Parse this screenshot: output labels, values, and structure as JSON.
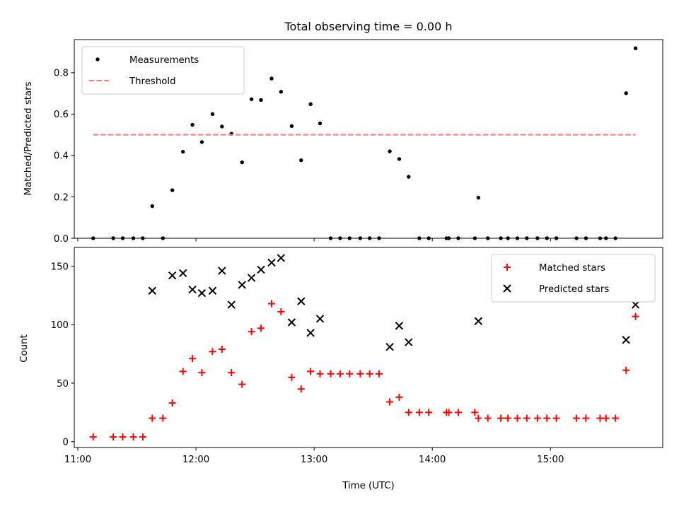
{
  "chart_data": [
    {
      "type": "scatter",
      "title": "Total observing time = 0.00 h",
      "xlabel": "",
      "ylabel": "Matched/Predicted stars",
      "xlim": [
        10.97,
        15.95
      ],
      "ylim": [
        0,
        0.96
      ],
      "x_axis": "time",
      "grid": false,
      "legend": "top-left",
      "yticks": [
        {
          "value": 0.0,
          "label": "0.0"
        },
        {
          "value": 0.2,
          "label": "0.2"
        },
        {
          "value": 0.4,
          "label": "0.4"
        },
        {
          "value": 0.6,
          "label": "0.6"
        },
        {
          "value": 0.8,
          "label": "0.8"
        }
      ],
      "xticks": [
        11,
        12,
        13,
        14,
        15
      ],
      "series": [
        {
          "name": "Measurements",
          "kind": "scatter",
          "marker": "dot",
          "color": "#000000",
          "points": [
            [
              11.13,
              0.0
            ],
            [
              11.3,
              0.0
            ],
            [
              11.38,
              0.0
            ],
            [
              11.47,
              0.0
            ],
            [
              11.55,
              0.0
            ],
            [
              11.63,
              0.155
            ],
            [
              11.72,
              0.0
            ],
            [
              11.8,
              0.232
            ],
            [
              11.89,
              0.418
            ],
            [
              11.97,
              0.548
            ],
            [
              12.05,
              0.465
            ],
            [
              12.14,
              0.6
            ],
            [
              12.22,
              0.54
            ],
            [
              12.3,
              0.505
            ],
            [
              12.39,
              0.367
            ],
            [
              12.47,
              0.672
            ],
            [
              12.55,
              0.668
            ],
            [
              12.64,
              0.772
            ],
            [
              12.72,
              0.708
            ],
            [
              12.81,
              0.542
            ],
            [
              12.89,
              0.377
            ],
            [
              12.97,
              0.648
            ],
            [
              13.05,
              0.555
            ],
            [
              13.14,
              0.0
            ],
            [
              13.22,
              0.0
            ],
            [
              13.3,
              0.0
            ],
            [
              13.39,
              0.0
            ],
            [
              13.47,
              0.0
            ],
            [
              13.55,
              0.0
            ],
            [
              13.64,
              0.42
            ],
            [
              13.72,
              0.383
            ],
            [
              13.8,
              0.297
            ],
            [
              13.89,
              0.0
            ],
            [
              13.97,
              0.0
            ],
            [
              14.12,
              0.0
            ],
            [
              14.14,
              0.0
            ],
            [
              14.22,
              0.0
            ],
            [
              14.36,
              0.0
            ],
            [
              14.39,
              0.196
            ],
            [
              14.47,
              0.0
            ],
            [
              14.58,
              0.0
            ],
            [
              14.64,
              0.0
            ],
            [
              14.72,
              0.0
            ],
            [
              14.8,
              0.0
            ],
            [
              14.89,
              0.0
            ],
            [
              14.97,
              0.0
            ],
            [
              15.05,
              0.0
            ],
            [
              15.22,
              0.0
            ],
            [
              15.3,
              0.0
            ],
            [
              15.42,
              0.0
            ],
            [
              15.47,
              0.0
            ],
            [
              15.55,
              0.0
            ],
            [
              15.64,
              0.701
            ],
            [
              15.72,
              0.918
            ]
          ]
        },
        {
          "name": "Threshold",
          "kind": "line",
          "style": "dashed",
          "color": "#ff7777",
          "points": [
            [
              11.13,
              0.5
            ],
            [
              15.72,
              0.5
            ]
          ]
        }
      ]
    },
    {
      "type": "scatter",
      "title": "",
      "xlabel": "Time (UTC)",
      "ylabel": "Count",
      "xlim": [
        10.97,
        15.95
      ],
      "ylim": [
        -5,
        166
      ],
      "x_axis": "time",
      "grid": false,
      "legend": "top-right",
      "yticks": [
        {
          "value": 0,
          "label": "0"
        },
        {
          "value": 50,
          "label": "50"
        },
        {
          "value": 100,
          "label": "100"
        },
        {
          "value": 150,
          "label": "150"
        }
      ],
      "xticks": [
        {
          "value": 11,
          "label": "11:00"
        },
        {
          "value": 12,
          "label": "12:00"
        },
        {
          "value": 13,
          "label": "13:00"
        },
        {
          "value": 14,
          "label": "14:00"
        },
        {
          "value": 15,
          "label": "15:00"
        }
      ],
      "series": [
        {
          "name": "Matched stars",
          "kind": "scatter",
          "marker": "plus",
          "color": "#ff0000",
          "points": [
            [
              11.13,
              4
            ],
            [
              11.3,
              4
            ],
            [
              11.38,
              4
            ],
            [
              11.47,
              4
            ],
            [
              11.55,
              4
            ],
            [
              11.63,
              20
            ],
            [
              11.72,
              20
            ],
            [
              11.8,
              33
            ],
            [
              11.89,
              60
            ],
            [
              11.97,
              71
            ],
            [
              12.05,
              59
            ],
            [
              12.14,
              77
            ],
            [
              12.22,
              79
            ],
            [
              12.3,
              59
            ],
            [
              12.39,
              49
            ],
            [
              12.47,
              94
            ],
            [
              12.55,
              97
            ],
            [
              12.64,
              118
            ],
            [
              12.72,
              111
            ],
            [
              12.81,
              55
            ],
            [
              12.89,
              45
            ],
            [
              12.97,
              60
            ],
            [
              13.05,
              58
            ],
            [
              13.14,
              58
            ],
            [
              13.22,
              58
            ],
            [
              13.3,
              58
            ],
            [
              13.39,
              58
            ],
            [
              13.47,
              58
            ],
            [
              13.55,
              58
            ],
            [
              13.64,
              34
            ],
            [
              13.72,
              38
            ],
            [
              13.8,
              25
            ],
            [
              13.89,
              25
            ],
            [
              13.97,
              25
            ],
            [
              14.12,
              25
            ],
            [
              14.14,
              25
            ],
            [
              14.22,
              25
            ],
            [
              14.36,
              25
            ],
            [
              14.39,
              20
            ],
            [
              14.47,
              20
            ],
            [
              14.58,
              20
            ],
            [
              14.64,
              20
            ],
            [
              14.72,
              20
            ],
            [
              14.8,
              20
            ],
            [
              14.89,
              20
            ],
            [
              14.97,
              20
            ],
            [
              15.05,
              20
            ],
            [
              15.22,
              20
            ],
            [
              15.3,
              20
            ],
            [
              15.42,
              20
            ],
            [
              15.47,
              20
            ],
            [
              15.55,
              20
            ],
            [
              15.64,
              61
            ],
            [
              15.72,
              107
            ]
          ]
        },
        {
          "name": "Predicted stars",
          "kind": "scatter",
          "marker": "x",
          "color": "#000000",
          "points": [
            [
              11.63,
              129
            ],
            [
              11.8,
              142
            ],
            [
              11.89,
              144
            ],
            [
              11.97,
              130
            ],
            [
              12.05,
              127
            ],
            [
              12.14,
              129
            ],
            [
              12.22,
              146
            ],
            [
              12.3,
              117
            ],
            [
              12.39,
              134
            ],
            [
              12.47,
              140
            ],
            [
              12.55,
              147
            ],
            [
              12.64,
              153
            ],
            [
              12.72,
              157
            ],
            [
              12.81,
              102
            ],
            [
              12.89,
              120
            ],
            [
              12.97,
              93
            ],
            [
              13.05,
              105
            ],
            [
              13.64,
              81
            ],
            [
              13.72,
              99
            ],
            [
              13.8,
              85
            ],
            [
              14.39,
              103
            ],
            [
              15.64,
              87
            ],
            [
              15.72,
              117
            ]
          ]
        }
      ]
    }
  ]
}
